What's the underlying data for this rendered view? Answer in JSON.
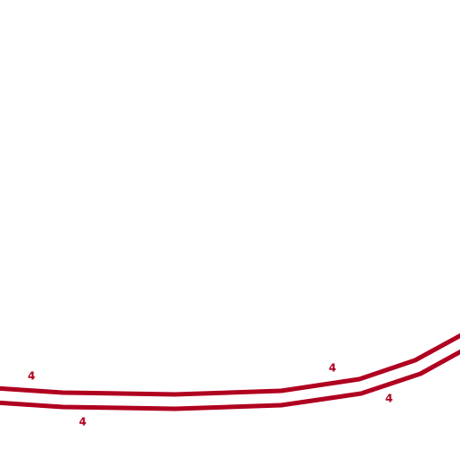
{
  "road": {
    "ref_labels": [
      "4",
      "4",
      "4",
      "4"
    ]
  }
}
